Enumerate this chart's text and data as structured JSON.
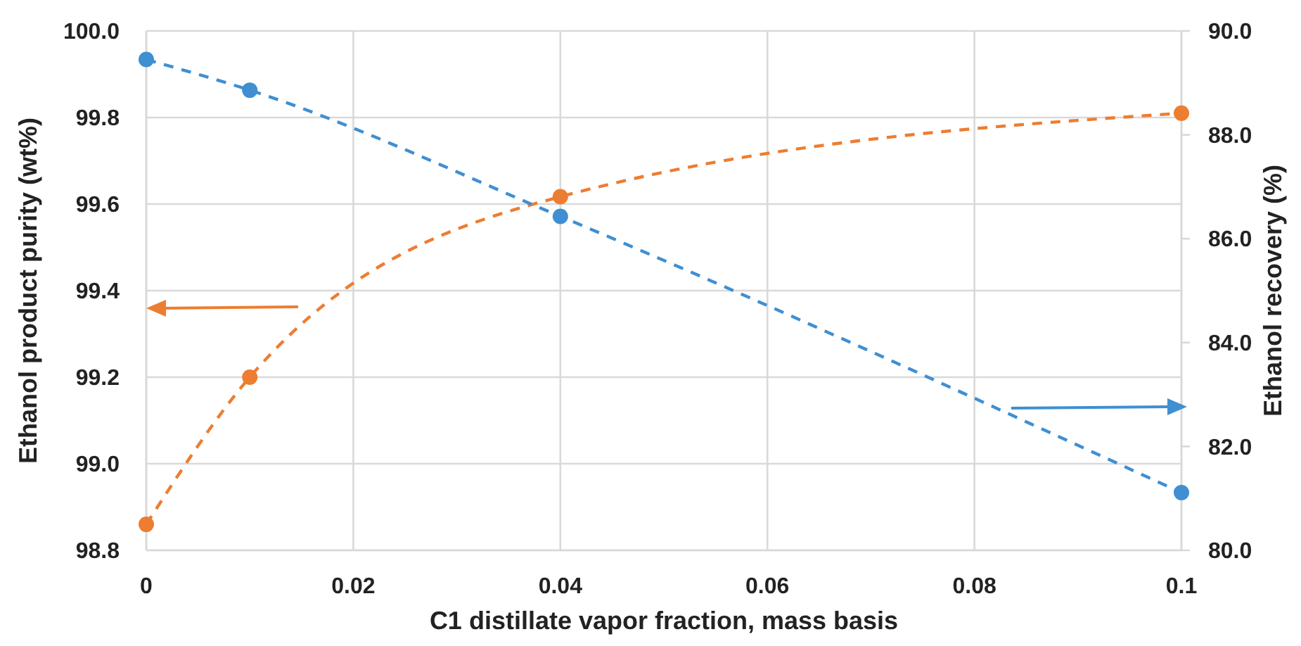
{
  "chart_data": {
    "type": "line",
    "xlabel": "C1 distillate vapor fraction, mass basis",
    "ylabel": "Ethanol product purity (wt%)",
    "y2label": "Ethanol recovery (%)",
    "x": [
      0,
      0.01,
      0.04,
      0.1
    ],
    "series": [
      {
        "color": "#ed7d31",
        "values": [
          98.86,
          99.2,
          99.617,
          99.81
        ]
      },
      {
        "color": "#3f8fd2",
        "axis": "y2",
        "values": [
          89.45,
          88.86,
          86.43,
          81.11
        ]
      }
    ],
    "xlim": [
      0,
      0.1
    ],
    "xticks": [
      0,
      0.02,
      0.04,
      0.06,
      0.08,
      0.1
    ],
    "ylim": [
      98.8,
      100
    ],
    "yticks": [
      {
        "value": 98.8,
        "label": "98.8"
      },
      {
        "value": 99,
        "label": "99.0"
      },
      99.2,
      99.4,
      99.6,
      99.8,
      {
        "value": 100,
        "label": "100.0"
      }
    ],
    "y2lim": [
      80,
      90
    ],
    "y2ticks": [
      {
        "value": 80,
        "label": "80.0"
      },
      {
        "value": 82,
        "label": "82.0"
      },
      {
        "value": 84,
        "label": "84.0"
      },
      {
        "value": 86,
        "label": "86.0"
      },
      {
        "value": 88,
        "label": "88.0"
      },
      {
        "value": 90,
        "label": "90.0"
      }
    ],
    "grid": true,
    "marker": "circle",
    "line_style": "dashed"
  }
}
